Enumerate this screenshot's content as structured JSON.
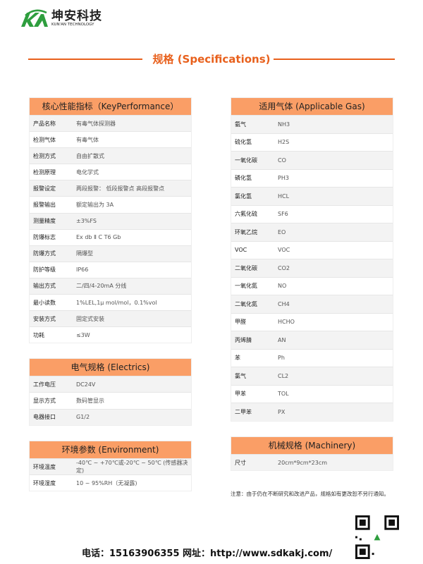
{
  "brand": {
    "name_cn": "坤安科技",
    "name_en": "KUN'AN TECHNOLOGY",
    "logo_letters": "KA",
    "color": "#2e9e3e"
  },
  "title": "规格 (Specifications)",
  "accent": "#e8601c",
  "header_color": "#fa9e66",
  "key_performance": {
    "title": "核心性能指标（KeyPerformance）",
    "rows": [
      {
        "k": "产品名称",
        "v": "有毒气体探测器"
      },
      {
        "k": "检测气体",
        "v": "有毒气体"
      },
      {
        "k": "检测方式",
        "v": "自由扩散式"
      },
      {
        "k": "检测原理",
        "v": "电化学式"
      },
      {
        "k": "报警设定",
        "v": "两段报警：  低段报警点  高段报警点"
      },
      {
        "k": "报警输出",
        "v": "额定输出为 3A"
      },
      {
        "k": "测量精度",
        "v": "±3%FS"
      },
      {
        "k": "防爆标志",
        "v": "Ex db Ⅱ C T6 Gb"
      },
      {
        "k": "防爆方式",
        "v": "隔爆型"
      },
      {
        "k": "防护等级",
        "v": "IP66"
      },
      {
        "k": "输出方式",
        "v": "二/四/4-20mA 分线"
      },
      {
        "k": "最小读数",
        "v": "1%LEL,1μ mol/mol，0.1%vol"
      },
      {
        "k": "安装方式",
        "v": "固定式安装"
      },
      {
        "k": "功耗",
        "v": "≤3W"
      }
    ]
  },
  "electrics": {
    "title": "电气规格 (Electrics)",
    "rows": [
      {
        "k": "工作电压",
        "v": "DC24V"
      },
      {
        "k": "显示方式",
        "v": "数码管显示"
      },
      {
        "k": "电器接口",
        "v": "G1/2"
      }
    ]
  },
  "environment": {
    "title": "环境参数 (Environment)",
    "rows": [
      {
        "k": "环境温度",
        "v": "-40℃ ~ +70℃或-20℃ ~ 50℃ (传感器决定)"
      },
      {
        "k": "环境湿度",
        "v": "10 ~ 95%RH（无凝露)"
      }
    ]
  },
  "gases": {
    "title": "适用气体 (Applicable Gas)",
    "rows": [
      {
        "k": "氨气",
        "v": "NH3"
      },
      {
        "k": "硫化氢",
        "v": "H2S"
      },
      {
        "k": "一氧化碳",
        "v": "CO"
      },
      {
        "k": "磷化氢",
        "v": "PH3"
      },
      {
        "k": "氯化氢",
        "v": "HCL"
      },
      {
        "k": "六氟化硫",
        "v": "SF6"
      },
      {
        "k": "环氧乙烷",
        "v": "EO"
      },
      {
        "k": "VOC",
        "v": "VOC"
      },
      {
        "k": "二氧化碳",
        "v": "CO2"
      },
      {
        "k": "一氧化氮",
        "v": "NO"
      },
      {
        "k": "二氧化氮",
        "v": "CH4"
      },
      {
        "k": "甲醛",
        "v": "HCHO"
      },
      {
        "k": "丙烯腈",
        "v": "AN"
      },
      {
        "k": "苯",
        "v": "Ph"
      },
      {
        "k": "氯气",
        "v": "CL2"
      },
      {
        "k": "甲苯",
        "v": "TOL"
      },
      {
        "k": "二甲苯",
        "v": "PX"
      }
    ]
  },
  "machinery": {
    "title": "机械规格 (Machinery)",
    "rows": [
      {
        "k": "尺寸",
        "v": "20cm*9cm*23cm"
      }
    ]
  },
  "note": "注意：由于仍在不断研究和改进产品，规格如有更改恕不另行通知。",
  "footer": "电话：15163906355  网址：http://www.sdkakj.com/",
  "qr_icon": "qr-code-icon"
}
